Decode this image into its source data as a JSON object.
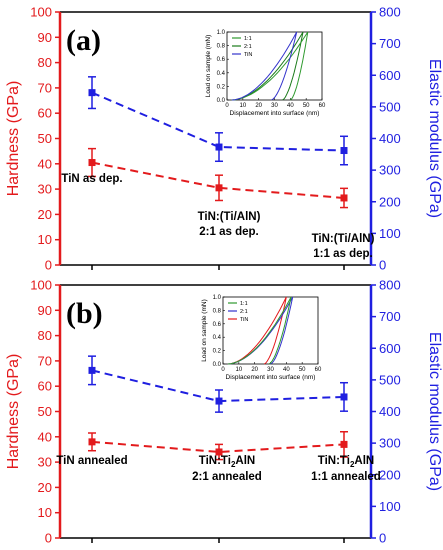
{
  "chart_data": [
    {
      "panel": "(a)",
      "type": "line",
      "categories": [
        "TiN as dep.",
        "TiN:(Ti/AlN) 2:1 as dep.",
        "TiN:(Ti/AlN) 1:1 as dep."
      ],
      "category_lines": [
        [
          "TiN as dep."
        ],
        [
          "TiN:(Ti/AlN)",
          "2:1 as dep."
        ],
        [
          "TiN:(Ti/AlN)",
          "1:1 as dep."
        ]
      ],
      "ylabel": "Hardness (GPa)",
      "y2label": "Elastic modulus (GPa)",
      "ylim": [
        0,
        100
      ],
      "y2lim": [
        0,
        800
      ],
      "yticks": [
        "0",
        "10",
        "20",
        "30",
        "40",
        "50",
        "60",
        "70",
        "80",
        "90",
        "100"
      ],
      "y2ticks": [
        "0",
        "100",
        "200",
        "300",
        "400",
        "500",
        "600",
        "700",
        "800"
      ],
      "series": [
        {
          "name": "Hardness",
          "axis": "left",
          "color": "#e31a1c",
          "values": [
            40.5,
            30.5,
            26.5
          ],
          "errors": [
            5.5,
            5.0,
            3.8
          ]
        },
        {
          "name": "Elastic modulus",
          "axis": "right",
          "color": "#1f1fe0",
          "values": [
            545,
            373,
            362
          ],
          "errors": [
            50,
            45,
            45
          ]
        }
      ],
      "inset": {
        "xlabel": "Displacement into surface (nm)",
        "ylabel": "Load on sample (mN)",
        "xlim": [
          0,
          60
        ],
        "ylim": [
          0,
          1.0
        ],
        "xticks": [
          "0",
          "10",
          "20",
          "30",
          "40",
          "50",
          "60"
        ],
        "yticks": [
          "0.0",
          "0.2",
          "0.4",
          "0.6",
          "0.8",
          "1.0"
        ],
        "legend": [
          {
            "label": "1:1",
            "color": "#2e9a2e"
          },
          {
            "label": "2:1",
            "color": "#1a7a1a"
          },
          {
            "label": "TiN",
            "color": "#3333cc"
          }
        ],
        "curves": [
          {
            "color": "#1a7a1a",
            "load_max_depth": 48,
            "residual": 35
          },
          {
            "color": "#2e9a2e",
            "load_max_depth": 51,
            "residual": 40
          },
          {
            "color": "#3333cc",
            "load_max_depth": 44,
            "residual": 28
          }
        ]
      }
    },
    {
      "panel": "(b)",
      "type": "line",
      "categories": [
        "TiN annealed",
        "TiN:Ti2AlN 2:1 annealed",
        "TiN:Ti2AlN 1:1 annealed"
      ],
      "ylabel": "Hardness (GPa)",
      "y2label": "Elastic modulus (GPa)",
      "ylim": [
        0,
        100
      ],
      "y2lim": [
        0,
        800
      ],
      "yticks": [
        "0",
        "10",
        "20",
        "30",
        "40",
        "50",
        "60",
        "70",
        "80",
        "90",
        "100"
      ],
      "y2ticks": [
        "0",
        "100",
        "200",
        "300",
        "400",
        "500",
        "600",
        "700",
        "800"
      ],
      "series": [
        {
          "name": "Hardness",
          "axis": "left",
          "color": "#e31a1c",
          "values": [
            38.0,
            34.0,
            37.0
          ],
          "errors": [
            3.5,
            3.0,
            5.0
          ]
        },
        {
          "name": "Elastic modulus",
          "axis": "right",
          "color": "#1f1fe0",
          "values": [
            530,
            433,
            446
          ],
          "errors": [
            45,
            35,
            45
          ]
        }
      ],
      "inset": {
        "xlabel": "Displacement into surface (nm)",
        "ylabel": "Load on sample (mN)",
        "xlim": [
          0,
          60
        ],
        "ylim": [
          0,
          1.0
        ],
        "xticks": [
          "0",
          "10",
          "20",
          "30",
          "40",
          "50",
          "60"
        ],
        "yticks": [
          "0.0",
          "0.2",
          "0.4",
          "0.6",
          "0.8",
          "1.0"
        ],
        "legend": [
          {
            "label": "1:1",
            "color": "#2e9a2e"
          },
          {
            "label": "2:1",
            "color": "#3333cc"
          },
          {
            "label": "TiN",
            "color": "#e31a1c"
          }
        ],
        "curves": [
          {
            "color": "#e31a1c",
            "load_max_depth": 40,
            "residual": 26
          },
          {
            "color": "#3333cc",
            "load_max_depth": 44,
            "residual": 30
          },
          {
            "color": "#2e9a2e",
            "load_max_depth": 43,
            "residual": 29
          }
        ]
      }
    }
  ],
  "panel_b_labels": {
    "cat1": "TiN annealed",
    "cat2_prefix": "TiN:Ti",
    "cat2_sub": "2",
    "cat2_suffix": "AlN",
    "cat2_line2": "2:1 annealed",
    "cat3_prefix": "TiN:Ti",
    "cat3_sub": "2",
    "cat3_suffix": "AlN",
    "cat3_line2": "1:1 annealed"
  }
}
